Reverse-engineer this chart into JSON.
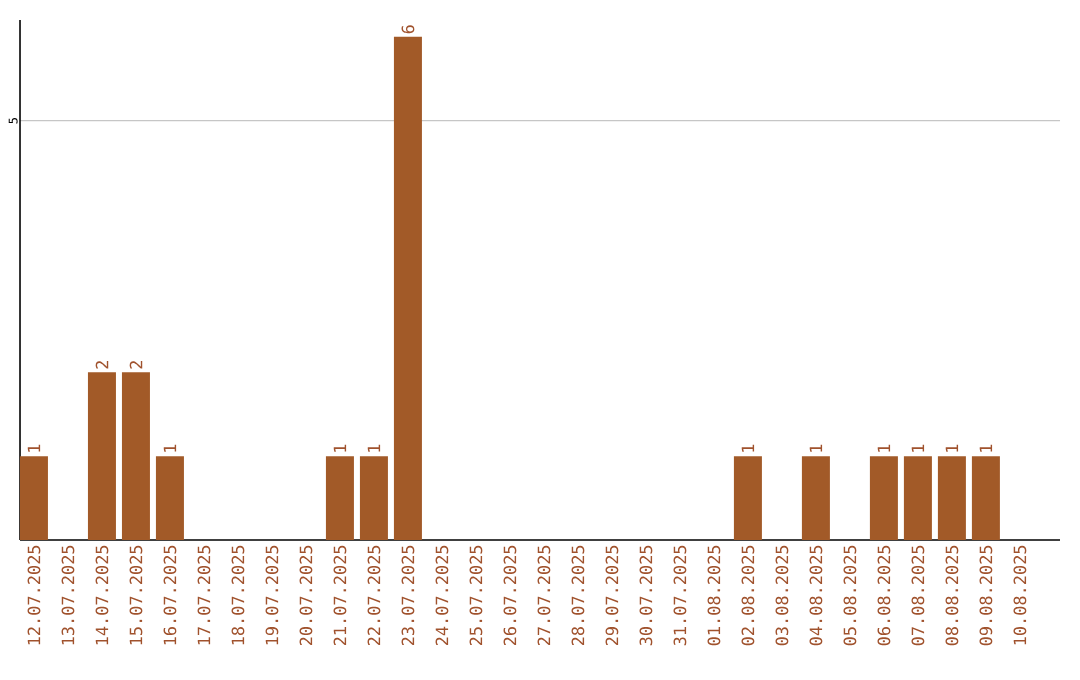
{
  "chart_data": {
    "type": "bar",
    "categories": [
      "12.07.2025",
      "13.07.2025",
      "14.07.2025",
      "15.07.2025",
      "16.07.2025",
      "17.07.2025",
      "18.07.2025",
      "19.07.2025",
      "20.07.2025",
      "21.07.2025",
      "22.07.2025",
      "23.07.2025",
      "24.07.2025",
      "25.07.2025",
      "26.07.2025",
      "27.07.2025",
      "28.07.2025",
      "29.07.2025",
      "30.07.2025",
      "31.07.2025",
      "01.08.2025",
      "02.08.2025",
      "03.08.2025",
      "04.08.2025",
      "05.08.2025",
      "06.08.2025",
      "07.08.2025",
      "08.08.2025",
      "09.08.2025",
      "10.08.2025"
    ],
    "values": [
      1,
      0,
      2,
      2,
      1,
      0,
      0,
      0,
      0,
      1,
      1,
      6,
      0,
      0,
      0,
      0,
      0,
      0,
      0,
      0,
      0,
      1,
      0,
      1,
      0,
      1,
      1,
      1,
      1,
      0
    ],
    "value_labels": [
      "1",
      null,
      "2",
      "2",
      "1",
      null,
      null,
      null,
      null,
      "1",
      "1",
      "6",
      null,
      null,
      null,
      null,
      null,
      null,
      null,
      null,
      null,
      "1",
      null,
      "1",
      null,
      "1",
      "1",
      "1",
      "1",
      null
    ],
    "color": "#a25a28",
    "ylim": [
      0,
      6.2
    ],
    "yticks": [
      5
    ],
    "grid": "y"
  }
}
